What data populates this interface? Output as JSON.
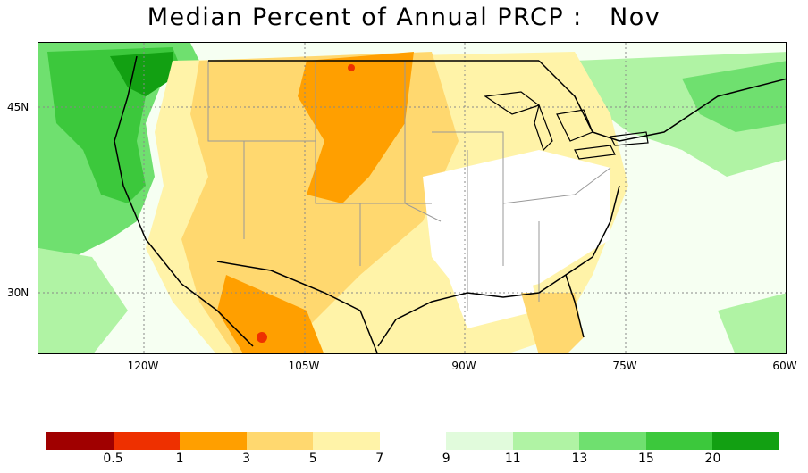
{
  "title": "Median Percent of Annual PRCP :   Nov",
  "map": {
    "lat_labels": [
      "45N",
      "30N"
    ],
    "lon_labels": [
      "120W",
      "105W",
      "90W",
      "75W",
      "60W"
    ],
    "land_color": "#ffffff",
    "boundary_color": "#000000",
    "state_line_color": "#999999",
    "grid_line_color": "#888888"
  },
  "colorbar": {
    "colors": [
      "#a00000",
      "#ee3000",
      "#ff9f00",
      "#ffd86f",
      "#fff3a8",
      "#ffffff",
      "#e1fbdc",
      "#b0f3a4",
      "#6fe06f",
      "#3cc83c",
      "#12a012"
    ],
    "labels": [
      "0.5",
      "1",
      "3",
      "5",
      "7",
      "9",
      "11",
      "13",
      "15",
      "20"
    ]
  }
}
